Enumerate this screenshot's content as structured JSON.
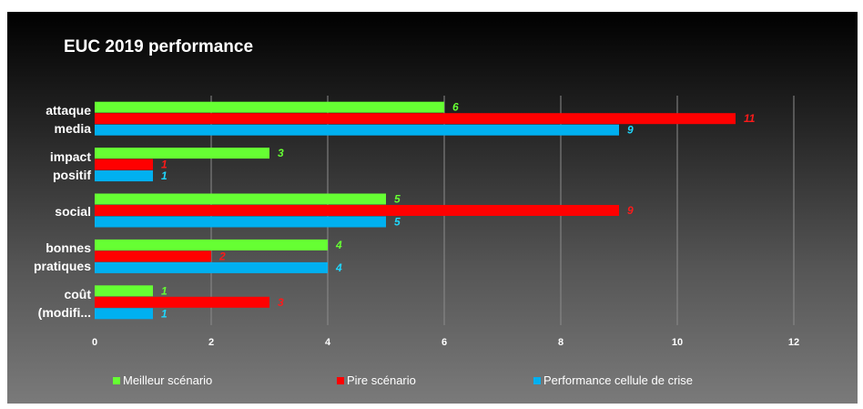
{
  "chart_data": {
    "type": "bar",
    "orientation": "horizontal",
    "title": "EUC 2019 performance",
    "categories": [
      [
        "attaque",
        "media"
      ],
      [
        "impact",
        "positif"
      ],
      [
        "social"
      ],
      [
        "bonnes",
        "pratiques"
      ],
      [
        "coût",
        "(modifi..."
      ]
    ],
    "series": [
      {
        "name": "Meilleur scénario",
        "color": "#66ff33",
        "label_color": "#66ff33",
        "values": [
          6,
          3,
          5,
          4,
          1
        ]
      },
      {
        "name": "Pire scénario",
        "color": "#ff0000",
        "label_color": "#ff1a1a",
        "values": [
          11,
          1,
          9,
          2,
          3
        ]
      },
      {
        "name": "Performance cellule de crise",
        "color": "#00b0f0",
        "label_color": "#1fd8ff",
        "values": [
          9,
          1,
          5,
          4,
          1
        ]
      }
    ],
    "x_ticks": [
      "0",
      "2",
      "4",
      "6",
      "8",
      "10",
      "12"
    ],
    "xlim": [
      0,
      12
    ],
    "grid": true,
    "legend_position": "bottom"
  }
}
